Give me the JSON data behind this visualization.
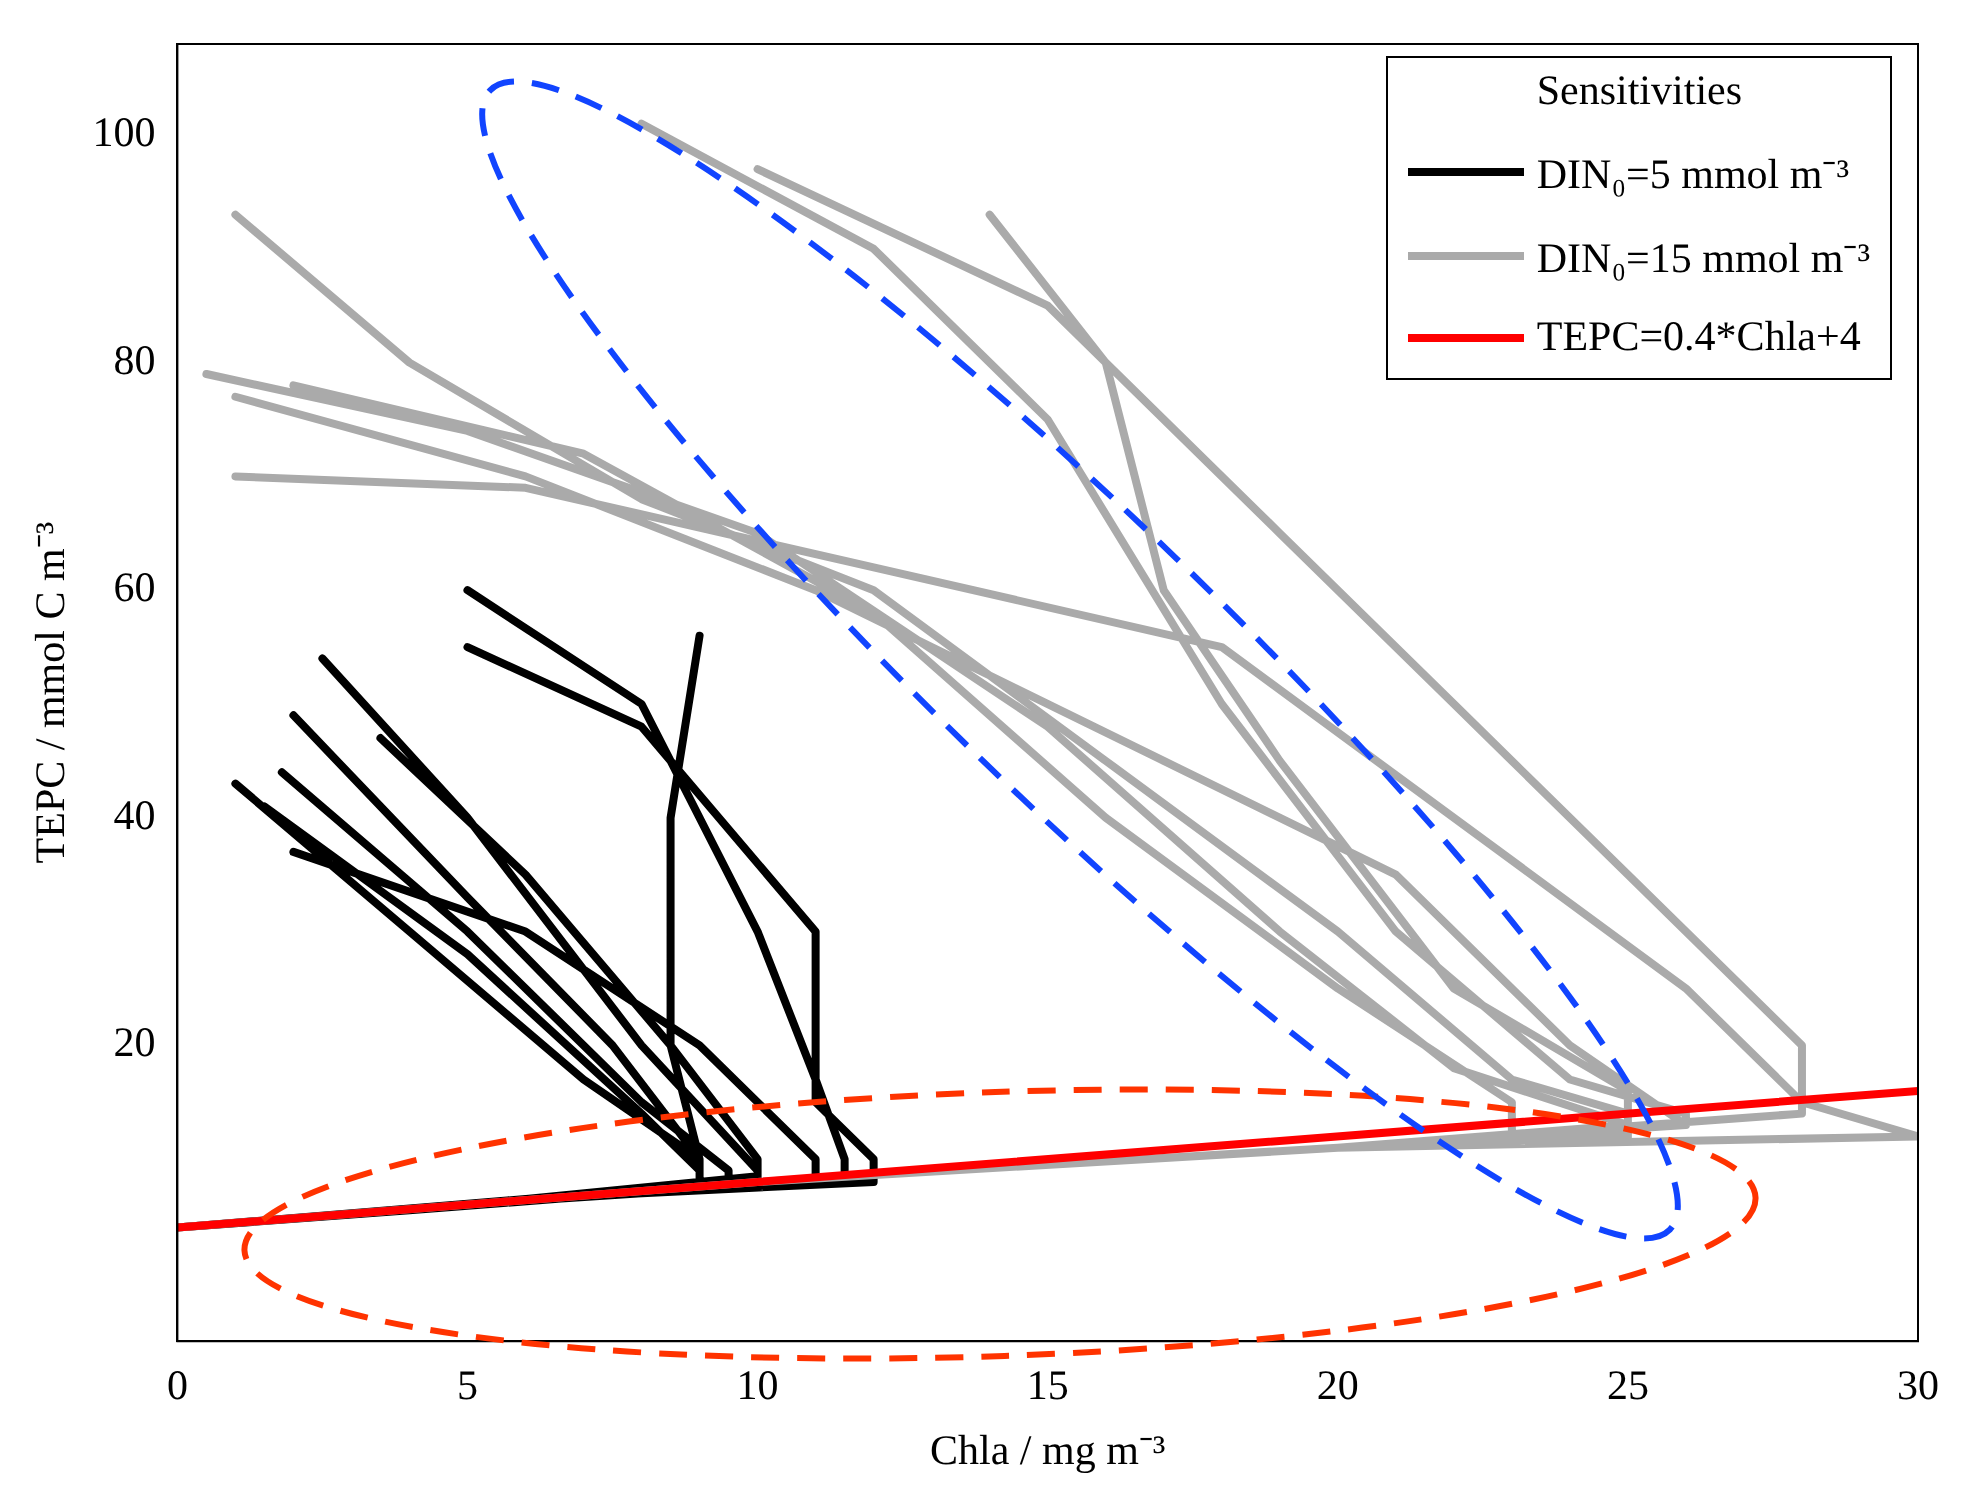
{
  "chart_data": {
    "type": "line",
    "xlabel": "Chla / mg m⁻³",
    "ylabel": "TEPC / mmol C m⁻³",
    "legend_title": "Sensitivities",
    "legend": "top right",
    "grid": false,
    "marker": "none",
    "line_style": "solid",
    "xlim": [
      0,
      30
    ],
    "xticks": [
      0,
      5,
      10,
      15,
      20,
      25,
      30
    ],
    "ylim": [
      -6,
      108
    ],
    "yticks": [
      20,
      40,
      60,
      80,
      100
    ],
    "series": [
      {
        "name": "DIN₀=5 mmol m⁻³",
        "color": "#000000",
        "x": [
          0,
          5,
          9,
          9,
          7,
          4,
          1,
          null,
          0,
          5,
          9.5,
          9.5,
          8,
          5,
          1.8,
          null,
          0,
          4,
          9,
          9,
          8,
          5,
          1.5,
          null,
          0,
          5,
          9,
          9,
          7.5,
          5,
          2,
          null,
          0,
          5,
          10,
          10,
          8,
          5,
          2.5,
          null,
          0,
          5,
          10,
          10,
          8.5,
          6,
          3.5,
          null,
          0,
          6,
          11.5,
          11.5,
          11,
          10,
          8,
          5,
          null,
          0,
          6,
          12,
          12,
          11,
          11,
          8,
          5,
          null,
          0,
          5,
          9,
          9,
          8.5,
          8.5,
          9,
          null,
          0,
          5,
          11,
          11,
          9,
          6,
          2
        ],
        "values": [
          4,
          6,
          8,
          10,
          17,
          30,
          43,
          null,
          4,
          6,
          8,
          9,
          15,
          30,
          44,
          null,
          4,
          5.5,
          7.5,
          9,
          14,
          28,
          41,
          null,
          4,
          6,
          8,
          10,
          20,
          33,
          49,
          null,
          4,
          6,
          8,
          9,
          20,
          40,
          54,
          null,
          4,
          6,
          8.5,
          10,
          20,
          35,
          47,
          null,
          4,
          6.5,
          8,
          10,
          17,
          30,
          50,
          60,
          null,
          4,
          6.5,
          8,
          10,
          15,
          30,
          48,
          55,
          null,
          4,
          6,
          8,
          10,
          20,
          40,
          56,
          null,
          4,
          6,
          8,
          10,
          20,
          30,
          37
        ]
      },
      {
        "name": "DIN₀=15 mmol m⁻³",
        "color": "#aaaaaa",
        "x": [
          0,
          10,
          20,
          26,
          26,
          24,
          21,
          18,
          15,
          12,
          8,
          null,
          0,
          10,
          20,
          25,
          25,
          23,
          20,
          16,
          12,
          8,
          4,
          1,
          null,
          0,
          10,
          20,
          25,
          25,
          22,
          19,
          15,
          10,
          5,
          0.5,
          null,
          0,
          10,
          20,
          28,
          28,
          26,
          22,
          18,
          12,
          6,
          1,
          null,
          0,
          10,
          20,
          25,
          25,
          22,
          19,
          17,
          16,
          14,
          null,
          0,
          10,
          20,
          30,
          28,
          28,
          25,
          22,
          19,
          15,
          10,
          null,
          0,
          10,
          20,
          23,
          23,
          20,
          16,
          12,
          7,
          2,
          null,
          0,
          10,
          20,
          26,
          26,
          24,
          21,
          17,
          11,
          6,
          1
        ],
        "values": [
          4,
          8,
          11,
          13,
          14,
          17,
          30,
          50,
          75,
          90,
          101,
          null,
          4,
          8,
          11,
          13,
          14,
          17,
          30,
          45,
          60,
          68,
          80,
          93,
          null,
          4,
          8,
          11,
          12,
          13,
          18,
          30,
          48,
          65,
          74,
          79,
          null,
          4,
          8,
          11,
          14,
          15,
          25,
          40,
          55,
          62,
          69,
          70,
          null,
          4,
          8,
          11,
          13,
          16,
          25,
          45,
          60,
          80,
          93,
          null,
          4,
          8,
          11,
          12,
          15,
          20,
          35,
          50,
          65,
          85,
          97,
          null,
          4,
          8,
          11,
          12,
          15,
          25,
          40,
          58,
          72,
          78,
          null,
          4,
          8,
          11,
          13,
          13,
          20,
          35,
          45,
          60,
          70,
          77
        ]
      },
      {
        "name": "TEPC=0.4*Chla+4",
        "color": "#ff0000",
        "x": [
          0,
          30
        ],
        "values": [
          4,
          16
        ]
      }
    ]
  }
}
